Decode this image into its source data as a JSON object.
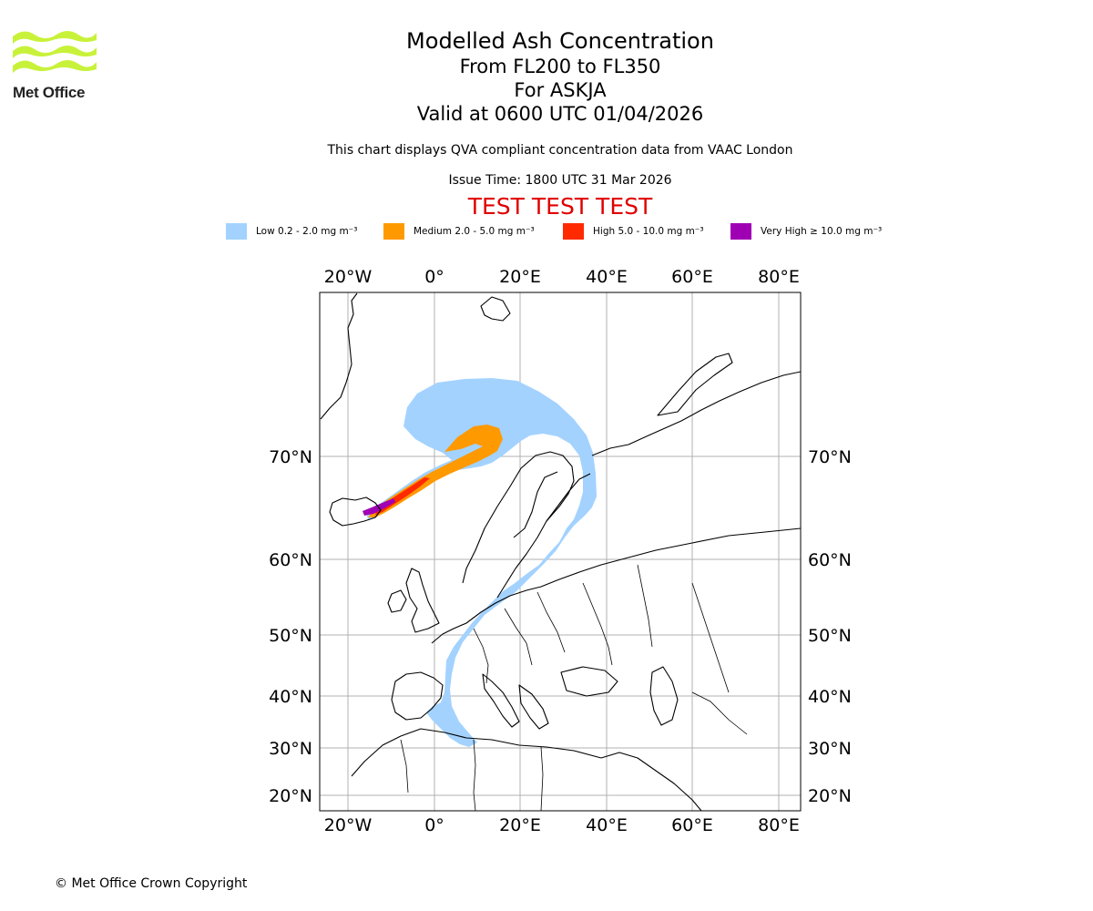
{
  "logo": {
    "text": "Met Office",
    "wave_color": "#c8f23a"
  },
  "header": {
    "title": "Modelled Ash Concentration",
    "levels": "From FL200 to FL350",
    "volcano": "For ASKJA",
    "valid": "Valid at 0600 UTC 01/04/2026",
    "description": "This chart displays QVA compliant concentration data from VAAC London",
    "issue_time": "Issue Time: 1800 UTC 31 Mar 2026",
    "test_banner": "TEST TEST TEST"
  },
  "legend": [
    {
      "label": "Low 0.2 - 2.0 mg m⁻³",
      "color": "#a3d2ff"
    },
    {
      "label": "Medium 2.0 - 5.0 mg m⁻³",
      "color": "#ff9900"
    },
    {
      "label": "High 5.0 - 10.0 mg m⁻³",
      "color": "#ff2a00"
    },
    {
      "label": "Very High  ≥  10.0 mg m⁻³",
      "color": "#a000b4"
    }
  ],
  "map": {
    "lon_ticks": [
      "20°W",
      "0°",
      "20°E",
      "40°E",
      "60°E",
      "80°E"
    ],
    "lat_ticks": [
      "70°N",
      "60°N",
      "50°N",
      "40°N",
      "30°N",
      "20°N"
    ],
    "grid": true
  },
  "footer": {
    "copyright": "© Met Office Crown Copyright"
  }
}
